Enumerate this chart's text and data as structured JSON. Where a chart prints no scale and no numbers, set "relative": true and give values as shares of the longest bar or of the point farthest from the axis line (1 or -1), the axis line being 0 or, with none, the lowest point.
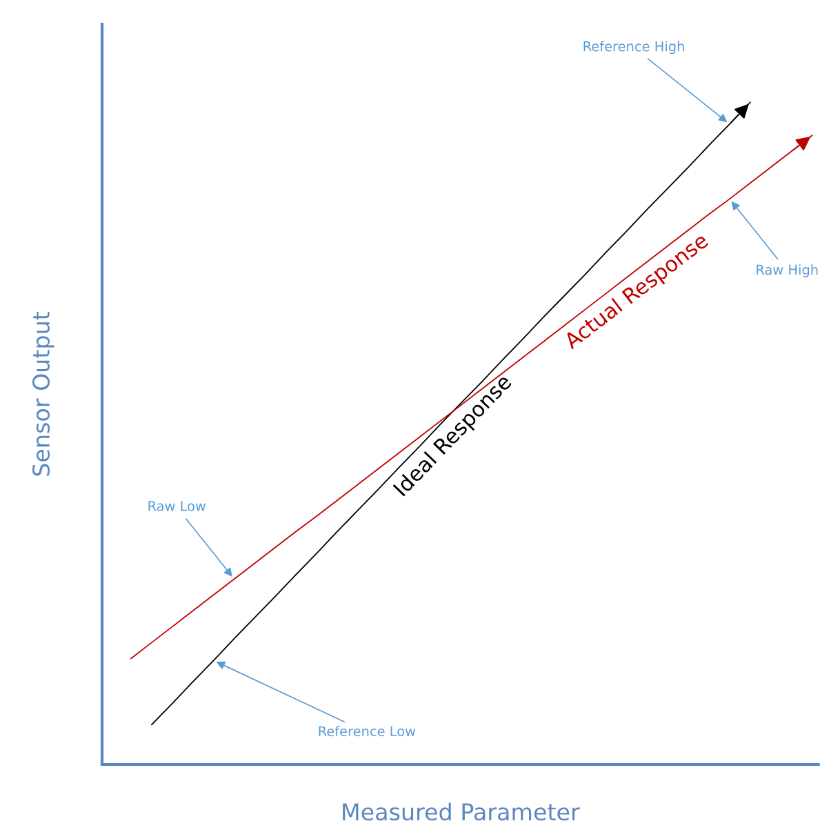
{
  "chart_data": {
    "type": "line",
    "relative": true,
    "xlabel": "Measured Parameter",
    "ylabel": "Sensor Output",
    "categories": [
      null,
      null,
      null,
      null,
      null,
      null,
      null,
      null,
      null,
      null,
      null,
      null,
      null,
      null,
      null,
      null,
      null,
      null,
      null,
      null,
      null,
      null,
      null,
      null,
      null,
      null,
      null,
      null,
      null,
      null,
      null,
      null,
      null,
      null
    ],
    "series": [
      {
        "name": "Ideal Response",
        "color": "#000000",
        "values": [
          null,
          0.06,
          0.092,
          0.125,
          0.157,
          0.19,
          0.222,
          0.254,
          0.287,
          0.319,
          0.352,
          0.384,
          0.416,
          0.449,
          0.481,
          0.514,
          0.546,
          0.578,
          0.611,
          0.643,
          0.676,
          0.708,
          0.74,
          0.773,
          0.805,
          0.838,
          0.87,
          0.902,
          0.935,
          0.967,
          1.0,
          null,
          null,
          null
        ]
      },
      {
        "name": "Actual Response",
        "color": "#c00000",
        "values": [
          0.16,
          0.184,
          0.208,
          0.232,
          0.256,
          0.28,
          0.304,
          0.328,
          0.352,
          0.375,
          0.399,
          0.423,
          0.447,
          0.471,
          0.495,
          0.519,
          0.543,
          0.567,
          0.591,
          0.615,
          0.639,
          0.663,
          0.687,
          0.711,
          0.735,
          0.759,
          0.783,
          0.807,
          0.831,
          0.854,
          0.878,
          0.902,
          0.926,
          0.95
        ]
      }
    ],
    "annotations": [
      "Reference High",
      "Raw High",
      "Raw Low",
      "Reference Low"
    ],
    "marker": "none",
    "line_style": "solid"
  }
}
